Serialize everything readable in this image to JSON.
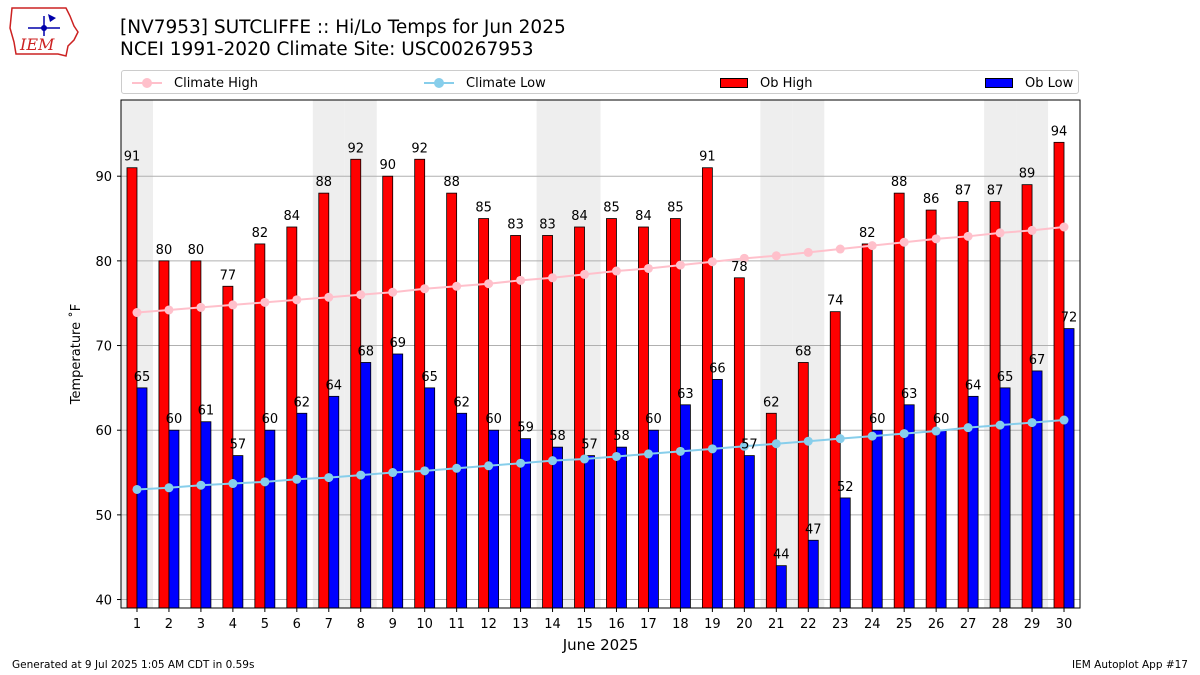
{
  "header": {
    "line1": "[NV7953] SUTCLIFFE :: Hi/Lo Temps for Jun 2025",
    "line2": "NCEI 1991-2020 Climate Site: USC00267953",
    "logo_text": "IEM"
  },
  "legend": {
    "climate_high": "Climate High",
    "climate_low": "Climate Low",
    "ob_high": "Ob High",
    "ob_low": "Ob Low"
  },
  "colors": {
    "ob_high": "#ff0000",
    "ob_low": "#0000ff",
    "climate_high": "#ffc0cb",
    "climate_low": "#87ceeb",
    "weekend_band": "#eeeeee",
    "grid": "#b0b0b0",
    "logo": "#cc2222"
  },
  "footer": {
    "left": "Generated at 9 Jul 2025 1:05 AM CDT in 0.59s",
    "right": "IEM Autoplot App #17"
  },
  "chart_data": {
    "type": "bar",
    "xlabel": "June 2025",
    "ylabel": "Temperature ˚F",
    "ylim": [
      39,
      99
    ],
    "yticks": [
      40,
      50,
      60,
      70,
      80,
      90
    ],
    "grid": "horizontal",
    "legend_position": "top",
    "categories": [
      1,
      2,
      3,
      4,
      5,
      6,
      7,
      8,
      9,
      10,
      11,
      12,
      13,
      14,
      15,
      16,
      17,
      18,
      19,
      20,
      21,
      22,
      23,
      24,
      25,
      26,
      27,
      28,
      29,
      30
    ],
    "weekend_days": [
      1,
      7,
      8,
      14,
      15,
      21,
      22,
      28,
      29
    ],
    "series": [
      {
        "name": "Ob High",
        "type": "bar",
        "values": [
          91,
          80,
          80,
          77,
          82,
          84,
          88,
          92,
          90,
          92,
          88,
          85,
          83,
          83,
          84,
          85,
          84,
          85,
          91,
          78,
          62,
          68,
          74,
          82,
          88,
          86,
          87,
          87,
          89,
          94
        ]
      },
      {
        "name": "Ob Low",
        "type": "bar",
        "values": [
          65,
          60,
          61,
          57,
          60,
          62,
          64,
          68,
          69,
          65,
          62,
          60,
          59,
          58,
          57,
          58,
          60,
          63,
          66,
          57,
          44,
          47,
          52,
          60,
          63,
          60,
          64,
          65,
          67,
          72
        ]
      },
      {
        "name": "Climate High",
        "type": "line",
        "values": [
          73.9,
          74.2,
          74.5,
          74.8,
          75.1,
          75.4,
          75.7,
          76.0,
          76.3,
          76.7,
          77.0,
          77.3,
          77.7,
          78.0,
          78.4,
          78.8,
          79.1,
          79.5,
          79.9,
          80.3,
          80.6,
          81.0,
          81.4,
          81.8,
          82.2,
          82.6,
          82.9,
          83.3,
          83.6,
          84.0
        ]
      },
      {
        "name": "Climate Low",
        "type": "line",
        "values": [
          53.0,
          53.2,
          53.5,
          53.7,
          53.9,
          54.2,
          54.4,
          54.7,
          55.0,
          55.2,
          55.5,
          55.8,
          56.1,
          56.4,
          56.6,
          56.9,
          57.2,
          57.5,
          57.8,
          58.1,
          58.4,
          58.7,
          59.0,
          59.3,
          59.6,
          59.9,
          60.3,
          60.6,
          60.9,
          61.2
        ]
      }
    ]
  }
}
